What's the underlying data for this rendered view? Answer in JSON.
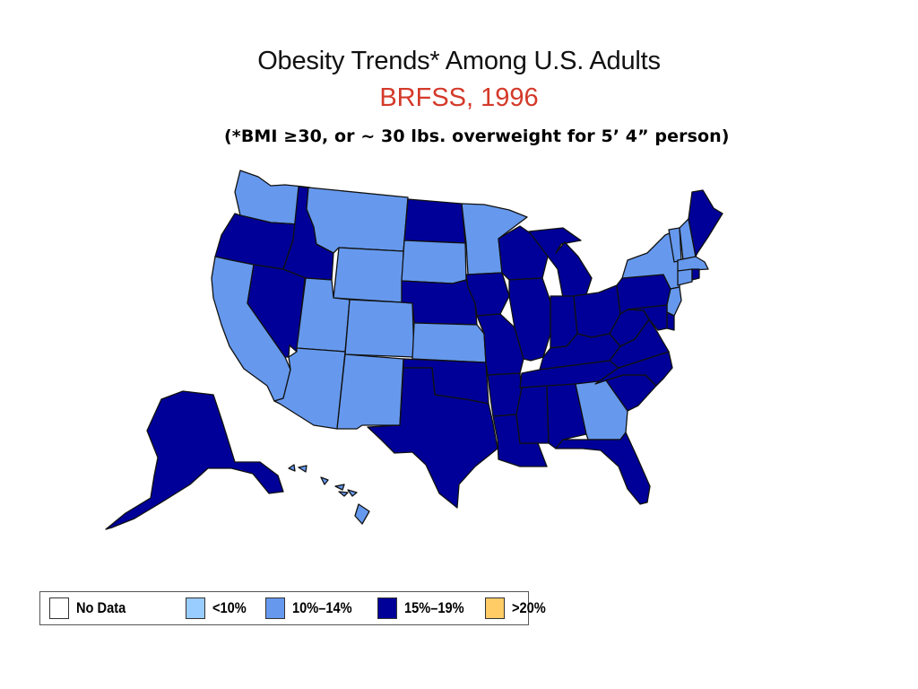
{
  "title": "Obesity Trends* Among U.S. Adults",
  "subtitle": "BRFSS, 1996",
  "note": "(*BMI ≥30, or ~ 30 lbs. overweight for 5’ 4” person)",
  "colors": {
    "no_data": "#ffffff",
    "lt10": "#99ccff",
    "c10_14": "#6699ee",
    "c15_19": "#000099",
    "gt20": "#ffcc66",
    "subtitle": "#d43a2a",
    "border": "#111111"
  },
  "legend": [
    {
      "label": "No Data",
      "color": "#ffffff"
    },
    {
      "label": "<10%",
      "color": "#99ccff"
    },
    {
      "label": "10%–14%",
      "color": "#6699ee"
    },
    {
      "label": "15%–19%",
      "color": "#000099"
    },
    {
      "label": ">20%",
      "color": "#ffcc66"
    }
  ],
  "states": {
    "WA": "10%–14%",
    "OR": "15%–19%",
    "CA": "10%–14%",
    "NV": "15%–19%",
    "ID": "15%–19%",
    "MT": "10%–14%",
    "WY": "10%–14%",
    "UT": "10%–14%",
    "AZ": "10%–14%",
    "CO": "10%–14%",
    "NM": "10%–14%",
    "ND": "15%–19%",
    "SD": "10%–14%",
    "NE": "15%–19%",
    "KS": "10%–14%",
    "OK": "15%–19%",
    "TX": "15%–19%",
    "MN": "10%–14%",
    "IA": "15%–19%",
    "MO": "15%–19%",
    "AR": "15%–19%",
    "LA": "15%–19%",
    "WI": "15%–19%",
    "IL": "15%–19%",
    "MI": "15%–19%",
    "IN": "15%–19%",
    "OH": "15%–19%",
    "KY": "15%–19%",
    "TN": "15%–19%",
    "MS": "15%–19%",
    "AL": "15%–19%",
    "GA": "10%–14%",
    "FL": "15%–19%",
    "SC": "15%–19%",
    "NC": "15%–19%",
    "VA": "15%–19%",
    "WV": "15%–19%",
    "PA": "15%–19%",
    "NY": "10%–14%",
    "VT": "10%–14%",
    "NH": "10%–14%",
    "ME": "15%–19%",
    "MA": "10%–14%",
    "CT": "10%–14%",
    "RI": "15%–19%",
    "NJ": "10%–14%",
    "DE": "15%–19%",
    "MD": "15%–19%",
    "AK": "15%–19%",
    "HI": "10%–14%"
  }
}
